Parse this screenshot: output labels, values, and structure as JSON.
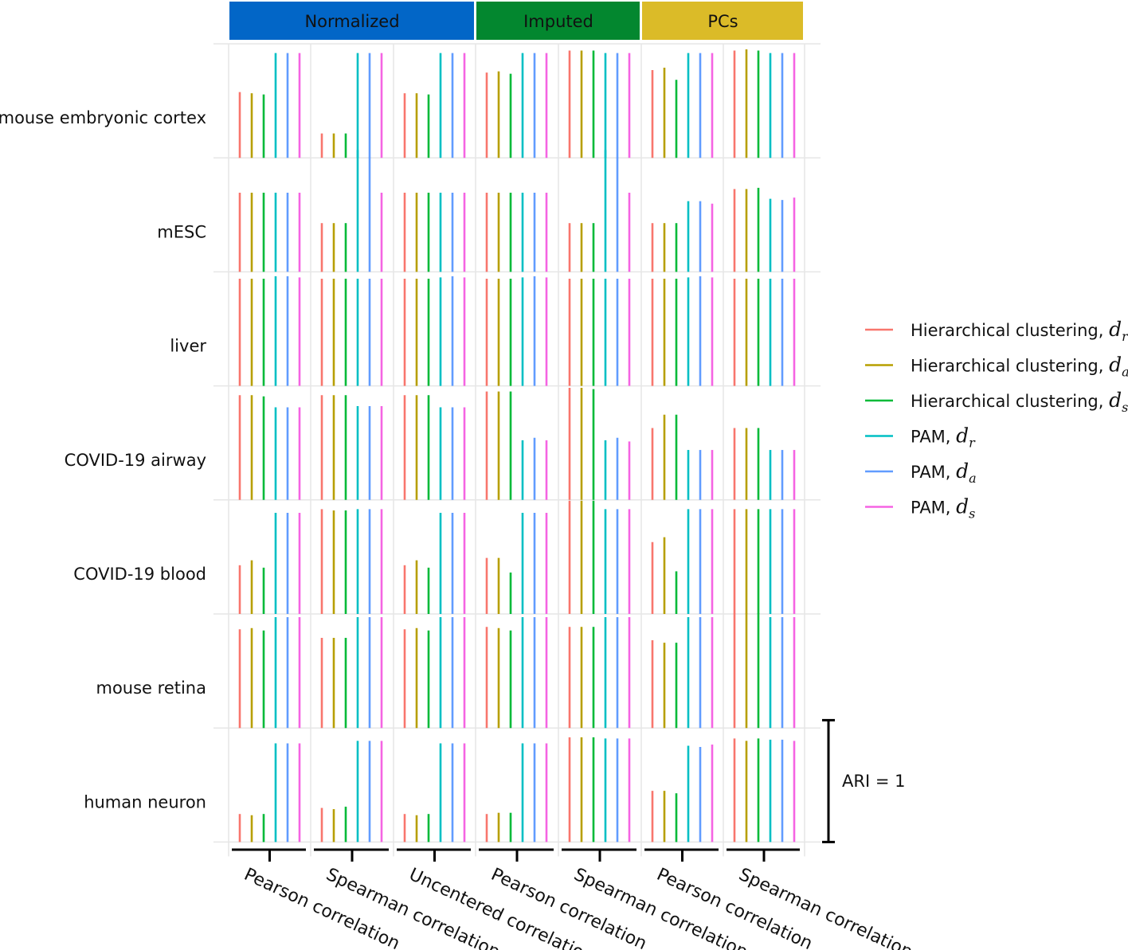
{
  "chart_data": {
    "type": "bar",
    "y_measure": "ARI",
    "ylim": [
      0,
      1
    ],
    "scale_bar_label": "ARI = 1",
    "groups": [
      {
        "name": "Normalized",
        "color": "#0266C7",
        "columns": [
          "Pearson correlation",
          "Spearman correlation",
          "Uncentered correlation"
        ]
      },
      {
        "name": "Imputed",
        "color": "#03872F",
        "columns": [
          "Pearson correlation",
          "Spearman correlation"
        ]
      },
      {
        "name": "PCs",
        "color": "#DBBB28",
        "columns": [
          "Pearson correlation",
          "Spearman correlation"
        ]
      }
    ],
    "datasets": [
      "mouse embryonic cortex",
      "mESC",
      "liver",
      "COVID-19 airway",
      "COVID-19 blood",
      "mouse retina",
      "human neuron"
    ],
    "series": [
      {
        "name": "Hierarchical clustering, ",
        "symbol": "d",
        "subscript": "r",
        "color": "#F8766D"
      },
      {
        "name": "Hierarchical clustering, ",
        "symbol": "d",
        "subscript": "a",
        "color": "#B79F00"
      },
      {
        "name": "Hierarchical clustering, ",
        "symbol": "d",
        "subscript": "s",
        "color": "#00BA38"
      },
      {
        "name": "PAM, ",
        "symbol": "d",
        "subscript": "r",
        "color": "#00BFC4"
      },
      {
        "name": "PAM, ",
        "symbol": "d",
        "subscript": "a",
        "color": "#619CFF"
      },
      {
        "name": "PAM, ",
        "symbol": "d",
        "subscript": "s",
        "color": "#F564E3"
      }
    ],
    "values": [
      [
        [
          0.54,
          0.53,
          0.52,
          0.86,
          0.86,
          0.86
        ],
        [
          0.2,
          0.2,
          0.2,
          0.86,
          0.86,
          0.86
        ],
        [
          0.53,
          0.53,
          0.52,
          0.86,
          0.86,
          0.86
        ],
        [
          0.7,
          0.71,
          0.69,
          0.86,
          0.86,
          0.86
        ],
        [
          0.88,
          0.88,
          0.88,
          0.86,
          0.86,
          0.86
        ],
        [
          0.72,
          0.74,
          0.64,
          0.86,
          0.86,
          0.86
        ],
        [
          0.88,
          0.89,
          0.88,
          0.86,
          0.86,
          0.86
        ]
      ],
      [
        [
          0.65,
          0.65,
          0.65,
          0.65,
          0.65,
          0.65
        ],
        [
          0.4,
          0.4,
          0.4,
          1.0,
          0.94,
          0.65
        ],
        [
          0.65,
          0.65,
          0.65,
          0.65,
          0.65,
          0.65
        ],
        [
          0.65,
          0.65,
          0.65,
          0.65,
          0.65,
          0.65
        ],
        [
          0.4,
          0.4,
          0.4,
          1.0,
          0.94,
          0.65
        ],
        [
          0.4,
          0.4,
          0.4,
          0.58,
          0.58,
          0.56
        ],
        [
          0.68,
          0.68,
          0.69,
          0.6,
          0.59,
          0.61
        ]
      ],
      [
        [
          0.88,
          0.88,
          0.88,
          0.9,
          0.9,
          0.89
        ],
        [
          0.88,
          0.88,
          0.88,
          0.88,
          0.88,
          0.88
        ],
        [
          0.88,
          0.88,
          0.88,
          0.89,
          0.9,
          0.89
        ],
        [
          0.88,
          0.88,
          0.88,
          0.89,
          0.9,
          0.89
        ],
        [
          0.88,
          0.88,
          0.88,
          0.88,
          0.88,
          0.88
        ],
        [
          0.88,
          0.88,
          0.88,
          0.89,
          0.9,
          0.89
        ],
        [
          0.88,
          0.88,
          0.88,
          0.88,
          0.88,
          0.88
        ]
      ],
      [
        [
          0.86,
          0.86,
          0.85,
          0.76,
          0.76,
          0.76
        ],
        [
          0.86,
          0.86,
          0.86,
          0.77,
          0.77,
          0.77
        ],
        [
          0.86,
          0.86,
          0.86,
          0.76,
          0.76,
          0.76
        ],
        [
          0.89,
          0.89,
          0.89,
          0.49,
          0.51,
          0.49
        ],
        [
          0.92,
          0.92,
          0.91,
          0.49,
          0.51,
          0.48
        ],
        [
          0.59,
          0.7,
          0.7,
          0.41,
          0.41,
          0.41
        ],
        [
          0.59,
          0.59,
          0.59,
          0.41,
          0.41,
          0.41
        ]
      ],
      [
        [
          0.4,
          0.44,
          0.38,
          0.83,
          0.83,
          0.83
        ],
        [
          0.86,
          0.85,
          0.85,
          0.86,
          0.86,
          0.86
        ],
        [
          0.4,
          0.44,
          0.38,
          0.83,
          0.83,
          0.83
        ],
        [
          0.46,
          0.46,
          0.34,
          0.83,
          0.83,
          0.83
        ],
        [
          0.93,
          0.93,
          0.93,
          0.86,
          0.86,
          0.86
        ],
        [
          0.59,
          0.63,
          0.35,
          0.86,
          0.86,
          0.86
        ],
        [
          0.86,
          0.86,
          0.86,
          0.86,
          0.86,
          0.86
        ]
      ],
      [
        [
          0.81,
          0.82,
          0.8,
          0.91,
          0.91,
          0.91
        ],
        [
          0.74,
          0.74,
          0.74,
          0.91,
          0.91,
          0.91
        ],
        [
          0.81,
          0.82,
          0.8,
          0.91,
          0.91,
          0.91
        ],
        [
          0.83,
          0.82,
          0.8,
          0.91,
          0.91,
          0.91
        ],
        [
          0.83,
          0.83,
          0.83,
          0.91,
          0.91,
          0.91
        ],
        [
          0.72,
          0.7,
          0.7,
          0.91,
          0.91,
          0.91
        ],
        [
          0.94,
          0.94,
          0.94,
          0.91,
          0.91,
          0.91
        ]
      ],
      [
        [
          0.23,
          0.22,
          0.23,
          0.81,
          0.81,
          0.81
        ],
        [
          0.28,
          0.27,
          0.29,
          0.83,
          0.83,
          0.83
        ],
        [
          0.23,
          0.22,
          0.23,
          0.81,
          0.81,
          0.81
        ],
        [
          0.23,
          0.24,
          0.24,
          0.81,
          0.81,
          0.81
        ],
        [
          0.86,
          0.86,
          0.86,
          0.85,
          0.85,
          0.85
        ],
        [
          0.42,
          0.42,
          0.4,
          0.79,
          0.78,
          0.8
        ],
        [
          0.85,
          0.83,
          0.85,
          0.84,
          0.84,
          0.83
        ]
      ]
    ]
  }
}
